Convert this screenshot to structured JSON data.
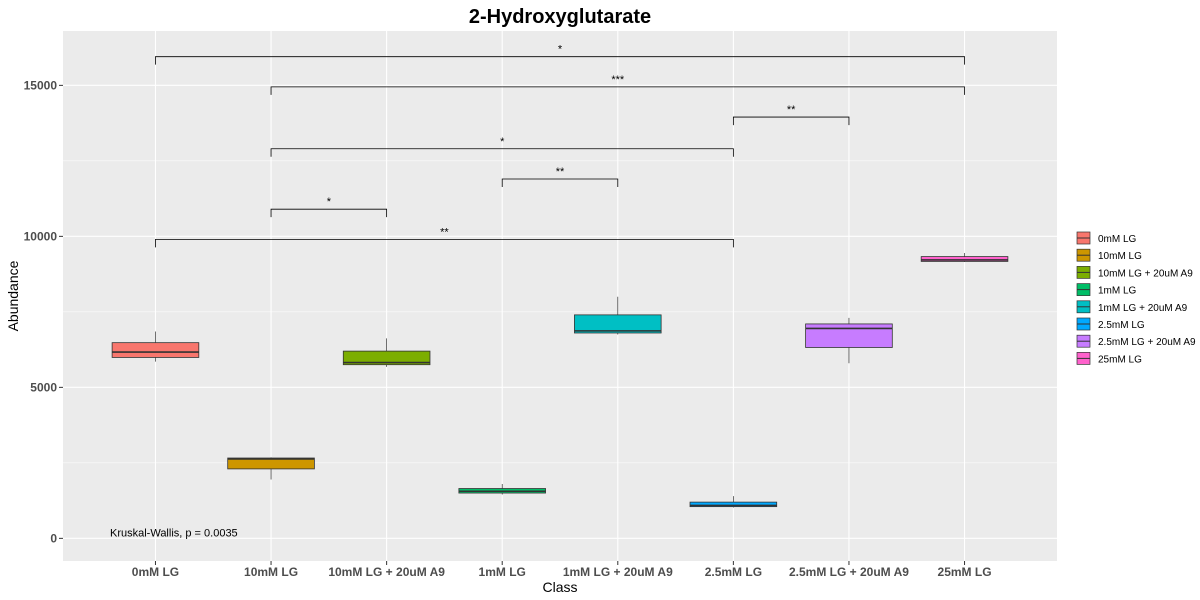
{
  "chart_data": {
    "type": "box",
    "title": "2-Hydroxyglutarate",
    "xlabel": "Class",
    "ylabel": "Abundance",
    "ylim": [
      -750,
      16800
    ],
    "yticks": [
      0,
      5000,
      10000,
      15000
    ],
    "grid": true,
    "legend_position": "right",
    "categories": [
      "0mM LG",
      "10mM LG",
      "10mM LG + 20uM A9",
      "1mM LG",
      "1mM LG + 20uM A9",
      "2.5mM LG",
      "2.5mM LG + 20uM A9",
      "25mM LG"
    ],
    "series": [
      {
        "name": "0mM LG",
        "color": "#F8766D",
        "min": 5850,
        "q1": 5990,
        "median": 6170,
        "q3": 6480,
        "max": 6850
      },
      {
        "name": "10mM LG",
        "color": "#CD9600",
        "min": 1950,
        "q1": 2300,
        "median": 2630,
        "q3": 2660,
        "max": 2680
      },
      {
        "name": "10mM LG + 20uM A9",
        "color": "#7CAE00",
        "min": 5680,
        "q1": 5750,
        "median": 5820,
        "q3": 6200,
        "max": 6620
      },
      {
        "name": "1mM LG",
        "color": "#00BE67",
        "min": 1450,
        "q1": 1500,
        "median": 1560,
        "q3": 1650,
        "max": 1800
      },
      {
        "name": "1mM LG + 20uM A9",
        "color": "#00BFC4",
        "min": 6750,
        "q1": 6800,
        "median": 6870,
        "q3": 7400,
        "max": 8000
      },
      {
        "name": "2.5mM LG",
        "color": "#00A9FF",
        "min": 1020,
        "q1": 1050,
        "median": 1090,
        "q3": 1200,
        "max": 1400
      },
      {
        "name": "2.5mM LG + 20uM A9",
        "color": "#C77CFF",
        "min": 5800,
        "q1": 6320,
        "median": 6950,
        "q3": 7100,
        "max": 7300
      },
      {
        "name": "25mM LG",
        "color": "#FF61CC",
        "min": 9150,
        "q1": 9170,
        "median": 9220,
        "q3": 9330,
        "max": 9450
      }
    ],
    "comparisons": [
      {
        "from": "0mM LG",
        "to": "2.5mM LG",
        "y": 9900,
        "label": "**"
      },
      {
        "from": "10mM LG",
        "to": "10mM LG + 20uM A9",
        "y": 10900,
        "label": "*"
      },
      {
        "from": "1mM LG",
        "to": "1mM LG + 20uM A9",
        "y": 11900,
        "label": "**"
      },
      {
        "from": "10mM LG",
        "to": "2.5mM LG",
        "y": 12900,
        "label": "*"
      },
      {
        "from": "2.5mM LG",
        "to": "2.5mM LG + 20uM A9",
        "y": 13950,
        "label": "**"
      },
      {
        "from": "10mM LG",
        "to": "25mM LG",
        "y": 14950,
        "label": "***"
      },
      {
        "from": "0mM LG",
        "to": "25mM LG",
        "y": 15950,
        "label": "*"
      }
    ],
    "annotation": "Kruskal-Wallis, p = 0.0035"
  }
}
